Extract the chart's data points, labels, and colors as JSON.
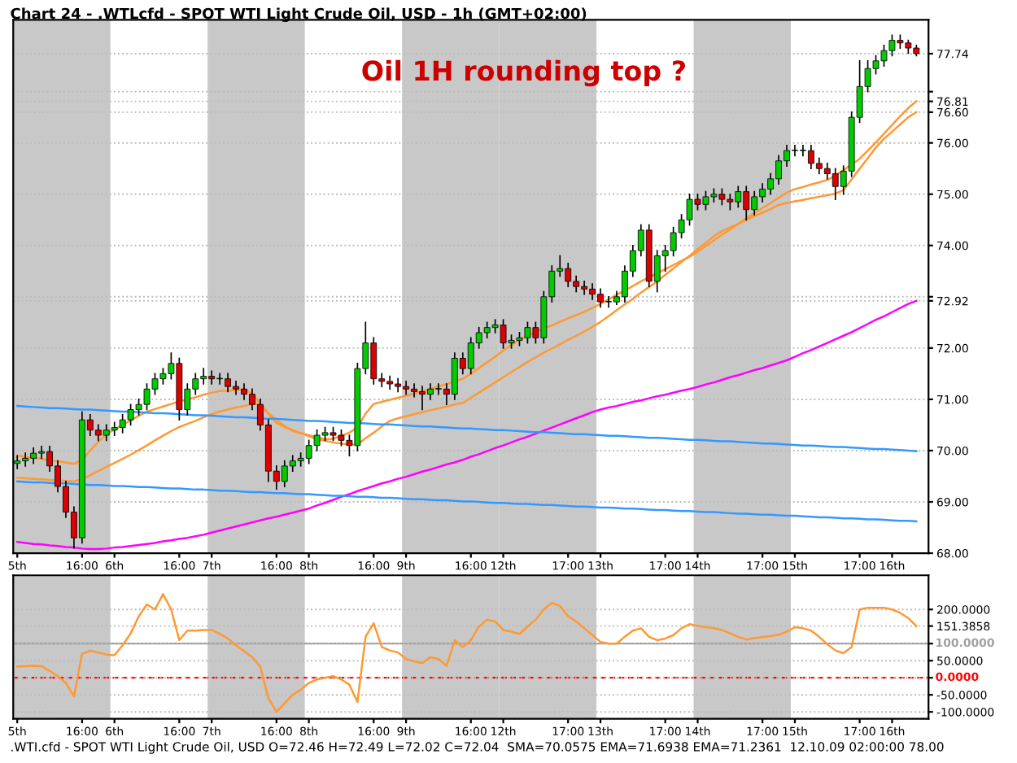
{
  "chart_data": [
    {
      "type": "candlestick",
      "title": "Chart 24 - .WTLcfd - SPOT WTI Light Crude Oil, USD - 1h (GMT+02:00)",
      "categories": [
        "5th",
        null,
        null,
        null,
        null,
        null,
        null,
        null,
        "16:00",
        null,
        null,
        null,
        "6th",
        null,
        null,
        null,
        null,
        null,
        null,
        null,
        "16:00",
        null,
        null,
        null,
        "7th",
        null,
        null,
        null,
        null,
        null,
        null,
        null,
        "16:00",
        null,
        null,
        null,
        "8th",
        null,
        null,
        null,
        null,
        null,
        null,
        null,
        "16:00",
        null,
        null,
        null,
        "9th",
        null,
        null,
        null,
        null,
        null,
        null,
        null,
        "16:00",
        null,
        null,
        null,
        "12th",
        null,
        null,
        null,
        null,
        null,
        null,
        null,
        "17:00",
        null,
        null,
        null,
        "13th",
        null,
        null,
        null,
        null,
        null,
        null,
        null,
        "17:00",
        null,
        null,
        null,
        "14th",
        null,
        null,
        null,
        null,
        null,
        null,
        null,
        "17:00",
        null,
        null,
        null,
        "15th",
        null,
        null,
        null,
        null,
        null,
        null,
        null,
        "17:00",
        null,
        null,
        null,
        "16th",
        null,
        null,
        null
      ],
      "ohlc": [
        [
          69.75,
          69.9,
          69.65,
          69.8
        ],
        [
          69.8,
          69.95,
          69.7,
          69.85
        ],
        [
          69.85,
          70.05,
          69.75,
          69.95
        ],
        [
          69.95,
          70.08,
          69.85,
          69.98
        ],
        [
          69.98,
          70.08,
          69.6,
          69.7
        ],
        [
          69.7,
          69.8,
          69.2,
          69.3
        ],
        [
          69.3,
          69.4,
          68.7,
          68.8
        ],
        [
          68.8,
          68.9,
          68.1,
          68.3
        ],
        [
          68.3,
          70.75,
          68.2,
          70.6
        ],
        [
          70.6,
          70.7,
          70.3,
          70.4
        ],
        [
          70.4,
          70.5,
          70.2,
          70.3
        ],
        [
          70.3,
          70.5,
          70.2,
          70.4
        ],
        [
          70.4,
          70.55,
          70.3,
          70.45
        ],
        [
          70.45,
          70.7,
          70.35,
          70.6
        ],
        [
          70.6,
          70.9,
          70.5,
          70.8
        ],
        [
          70.8,
          71.0,
          70.7,
          70.9
        ],
        [
          70.9,
          71.3,
          70.8,
          71.2
        ],
        [
          71.2,
          71.5,
          71.1,
          71.4
        ],
        [
          71.4,
          71.6,
          71.3,
          71.5
        ],
        [
          71.5,
          71.9,
          71.4,
          71.7
        ],
        [
          71.7,
          71.8,
          70.6,
          70.8
        ],
        [
          70.8,
          71.3,
          70.7,
          71.2
        ],
        [
          71.2,
          71.5,
          71.1,
          71.4
        ],
        [
          71.4,
          71.6,
          71.3,
          71.45
        ],
        [
          71.45,
          71.55,
          71.3,
          71.4
        ],
        [
          71.4,
          71.5,
          71.3,
          71.4
        ],
        [
          71.4,
          71.5,
          71.15,
          71.25
        ],
        [
          71.25,
          71.35,
          71.1,
          71.2
        ],
        [
          71.2,
          71.3,
          71.0,
          71.1
        ],
        [
          71.1,
          71.2,
          70.8,
          70.9
        ],
        [
          70.9,
          71.0,
          70.4,
          70.5
        ],
        [
          70.5,
          70.6,
          69.4,
          69.6
        ],
        [
          69.6,
          69.7,
          69.25,
          69.4
        ],
        [
          69.4,
          69.8,
          69.3,
          69.7
        ],
        [
          69.7,
          69.9,
          69.6,
          69.8
        ],
        [
          69.8,
          69.95,
          69.7,
          69.85
        ],
        [
          69.85,
          70.2,
          69.75,
          70.1
        ],
        [
          70.1,
          70.4,
          70.0,
          70.3
        ],
        [
          70.3,
          70.45,
          70.2,
          70.35
        ],
        [
          70.35,
          70.45,
          70.2,
          70.3
        ],
        [
          70.3,
          70.4,
          70.1,
          70.2
        ],
        [
          70.2,
          70.3,
          69.9,
          70.1
        ],
        [
          70.1,
          71.7,
          70.0,
          71.6
        ],
        [
          71.6,
          72.5,
          71.5,
          72.1
        ],
        [
          72.1,
          72.2,
          71.3,
          71.4
        ],
        [
          71.4,
          71.5,
          71.25,
          71.35
        ],
        [
          71.35,
          71.45,
          71.2,
          71.3
        ],
        [
          71.3,
          71.4,
          71.15,
          71.25
        ],
        [
          71.25,
          71.35,
          71.1,
          71.2
        ],
        [
          71.2,
          71.3,
          71.05,
          71.15
        ],
        [
          71.15,
          71.25,
          70.8,
          71.1
        ],
        [
          71.1,
          71.3,
          71.0,
          71.2
        ],
        [
          71.2,
          71.3,
          71.1,
          71.2
        ],
        [
          71.2,
          71.3,
          70.9,
          71.1
        ],
        [
          71.1,
          71.9,
          71.0,
          71.8
        ],
        [
          71.8,
          71.9,
          71.5,
          71.6
        ],
        [
          71.6,
          72.2,
          71.5,
          72.1
        ],
        [
          72.1,
          72.4,
          72.0,
          72.3
        ],
        [
          72.3,
          72.5,
          72.2,
          72.4
        ],
        [
          72.4,
          72.55,
          72.3,
          72.45
        ],
        [
          72.45,
          72.55,
          72.0,
          72.1
        ],
        [
          72.1,
          72.25,
          72.0,
          72.15
        ],
        [
          72.15,
          72.3,
          72.05,
          72.2
        ],
        [
          72.2,
          72.5,
          72.1,
          72.4
        ],
        [
          72.4,
          72.5,
          72.1,
          72.2
        ],
        [
          72.2,
          73.1,
          72.1,
          73.0
        ],
        [
          73.0,
          73.6,
          72.9,
          73.5
        ],
        [
          73.5,
          73.8,
          73.4,
          73.55
        ],
        [
          73.55,
          73.65,
          73.2,
          73.3
        ],
        [
          73.3,
          73.4,
          73.1,
          73.2
        ],
        [
          73.2,
          73.3,
          73.05,
          73.15
        ],
        [
          73.15,
          73.25,
          72.95,
          73.05
        ],
        [
          73.05,
          73.15,
          72.8,
          72.9
        ],
        [
          72.9,
          73.0,
          72.8,
          72.9
        ],
        [
          72.9,
          73.1,
          72.85,
          73.0
        ],
        [
          73.0,
          73.6,
          72.9,
          73.5
        ],
        [
          73.5,
          74.0,
          73.4,
          73.9
        ],
        [
          73.9,
          74.4,
          73.8,
          74.3
        ],
        [
          74.3,
          74.4,
          73.2,
          73.3
        ],
        [
          73.3,
          73.9,
          73.1,
          73.8
        ],
        [
          73.8,
          74.0,
          73.5,
          73.9
        ],
        [
          73.9,
          74.35,
          73.8,
          74.25
        ],
        [
          74.25,
          74.6,
          74.15,
          74.5
        ],
        [
          74.5,
          75.0,
          74.4,
          74.9
        ],
        [
          74.9,
          75.0,
          74.7,
          74.8
        ],
        [
          74.8,
          75.05,
          74.7,
          74.95
        ],
        [
          74.95,
          75.1,
          74.85,
          75.0
        ],
        [
          75.0,
          75.1,
          74.8,
          74.9
        ],
        [
          74.9,
          75.0,
          74.7,
          74.85
        ],
        [
          74.85,
          75.15,
          74.75,
          75.05
        ],
        [
          75.05,
          75.15,
          74.5,
          74.7
        ],
        [
          74.7,
          75.05,
          74.6,
          74.95
        ],
        [
          74.95,
          75.2,
          74.85,
          75.1
        ],
        [
          75.1,
          75.4,
          75.0,
          75.3
        ],
        [
          75.3,
          75.75,
          75.2,
          75.65
        ],
        [
          75.65,
          75.95,
          75.55,
          75.85
        ],
        [
          75.85,
          75.95,
          75.75,
          75.85
        ],
        [
          75.85,
          75.95,
          75.75,
          75.85
        ],
        [
          75.85,
          75.95,
          75.5,
          75.6
        ],
        [
          75.6,
          75.7,
          75.4,
          75.5
        ],
        [
          75.5,
          75.6,
          75.3,
          75.4
        ],
        [
          75.4,
          75.5,
          74.9,
          75.15
        ],
        [
          75.15,
          75.55,
          75.0,
          75.45
        ],
        [
          75.45,
          76.6,
          75.35,
          76.5
        ],
        [
          76.5,
          77.6,
          76.4,
          77.1
        ],
        [
          77.1,
          77.6,
          77.0,
          77.45
        ],
        [
          77.45,
          77.7,
          77.35,
          77.6
        ],
        [
          77.6,
          77.9,
          77.5,
          77.8
        ],
        [
          77.8,
          78.1,
          77.7,
          78.0
        ],
        [
          78.0,
          78.1,
          77.85,
          77.95
        ],
        [
          77.95,
          78.0,
          77.75,
          77.85
        ],
        [
          77.85,
          77.9,
          77.7,
          77.74
        ]
      ],
      "series": [
        {
          "type": "line",
          "color": "#ff00ff",
          "values": [
            68.22,
            68.2,
            68.18,
            68.17,
            68.15,
            68.14,
            68.12,
            68.11,
            68.09,
            68.08,
            68.08,
            68.09,
            68.11,
            68.12,
            68.14,
            68.16,
            68.18,
            68.2,
            68.23,
            68.25,
            68.28,
            68.3,
            68.33,
            68.36,
            68.4,
            68.44,
            68.48,
            68.52,
            68.56,
            68.6,
            68.64,
            68.68,
            68.71,
            68.75,
            68.79,
            68.83,
            68.87,
            68.93,
            68.98,
            69.04,
            69.1,
            69.15,
            69.21,
            69.26,
            69.31,
            69.36,
            69.4,
            69.45,
            69.49,
            69.54,
            69.59,
            69.63,
            69.68,
            69.73,
            69.77,
            69.82,
            69.88,
            69.93,
            69.99,
            70.05,
            70.1,
            70.16,
            70.22,
            70.27,
            70.33,
            70.39,
            70.45,
            70.51,
            70.57,
            70.63,
            70.69,
            70.75,
            70.8,
            70.84,
            70.87,
            70.91,
            70.95,
            70.98,
            71.02,
            71.06,
            71.09,
            71.13,
            71.17,
            71.2,
            71.24,
            71.29,
            71.33,
            71.38,
            71.43,
            71.47,
            71.52,
            71.57,
            71.61,
            71.66,
            71.71,
            71.76,
            71.83,
            71.9,
            71.96,
            72.03,
            72.1,
            72.17,
            72.24,
            72.31,
            72.39,
            72.47,
            72.55,
            72.62,
            72.7,
            72.78,
            72.86,
            72.92
          ]
        },
        {
          "type": "line",
          "color": "#ff9933",
          "values": [
            69.9,
            69.88,
            69.86,
            69.84,
            69.81,
            69.79,
            69.77,
            69.74,
            69.82,
            70.0,
            70.17,
            70.32,
            70.41,
            70.5,
            70.59,
            70.68,
            70.76,
            70.81,
            70.86,
            70.91,
            70.96,
            71.0,
            71.04,
            71.09,
            71.13,
            71.16,
            71.17,
            71.18,
            71.2,
            71.11,
            70.92,
            70.73,
            70.6,
            70.48,
            70.38,
            70.34,
            70.3,
            70.26,
            70.22,
            70.23,
            70.29,
            70.35,
            70.45,
            70.72,
            70.91,
            70.95,
            70.99,
            71.03,
            71.07,
            71.11,
            71.16,
            71.2,
            71.25,
            71.3,
            71.35,
            71.4,
            71.5,
            71.61,
            71.72,
            71.83,
            71.95,
            72.06,
            72.16,
            72.24,
            72.31,
            72.38,
            72.44,
            72.51,
            72.58,
            72.64,
            72.71,
            72.78,
            72.86,
            72.95,
            73.04,
            73.12,
            73.21,
            73.3,
            73.38,
            73.46,
            73.54,
            73.62,
            73.7,
            73.78,
            73.88,
            73.99,
            74.1,
            74.21,
            74.31,
            74.42,
            74.53,
            74.63,
            74.73,
            74.83,
            74.93,
            75.03,
            75.1,
            75.14,
            75.19,
            75.23,
            75.28,
            75.36,
            75.47,
            75.58,
            75.69,
            75.85,
            76.01,
            76.18,
            76.35,
            76.52,
            76.68,
            76.81
          ]
        },
        {
          "type": "line",
          "color": "#ff9933",
          "values": [
            69.47,
            69.46,
            69.45,
            69.44,
            69.43,
            69.42,
            69.41,
            69.4,
            69.44,
            69.52,
            69.6,
            69.68,
            69.76,
            69.84,
            69.92,
            70.01,
            70.1,
            70.2,
            70.29,
            70.38,
            70.46,
            70.52,
            70.58,
            70.65,
            70.71,
            70.76,
            70.8,
            70.84,
            70.87,
            70.91,
            70.9,
            70.72,
            70.54,
            70.46,
            70.4,
            70.34,
            70.28,
            70.22,
            70.19,
            70.16,
            70.14,
            70.12,
            70.12,
            70.24,
            70.35,
            70.47,
            70.58,
            70.63,
            70.67,
            70.71,
            70.75,
            70.79,
            70.82,
            70.86,
            70.9,
            70.93,
            71.03,
            71.13,
            71.23,
            71.33,
            71.43,
            71.53,
            71.63,
            71.73,
            71.82,
            71.91,
            71.99,
            72.07,
            72.16,
            72.24,
            72.32,
            72.41,
            72.51,
            72.62,
            72.74,
            72.85,
            72.96,
            73.08,
            73.19,
            73.3,
            73.43,
            73.55,
            73.68,
            73.8,
            73.93,
            74.05,
            74.18,
            74.28,
            74.35,
            74.42,
            74.5,
            74.57,
            74.64,
            74.71,
            74.79,
            74.83,
            74.86,
            74.89,
            74.92,
            74.95,
            74.98,
            75.01,
            75.08,
            75.29,
            75.5,
            75.7,
            75.91,
            76.08,
            76.22,
            76.36,
            76.5,
            76.6
          ]
        },
        {
          "type": "line",
          "color": "#3399ff",
          "values": [
            70.87,
            70.86,
            70.85,
            70.84,
            70.83,
            70.83,
            70.82,
            70.81,
            70.8,
            70.8,
            70.79,
            70.78,
            70.77,
            70.76,
            70.76,
            70.75,
            70.74,
            70.73,
            70.73,
            70.72,
            70.71,
            70.7,
            70.69,
            70.69,
            70.68,
            70.67,
            70.66,
            70.65,
            70.65,
            70.64,
            70.63,
            70.62,
            70.62,
            70.61,
            70.6,
            70.59,
            70.58,
            70.58,
            70.57,
            70.56,
            70.55,
            70.54,
            70.54,
            70.53,
            70.52,
            70.51,
            70.51,
            70.5,
            70.49,
            70.48,
            70.47,
            70.47,
            70.46,
            70.45,
            70.44,
            70.43,
            70.43,
            70.42,
            70.41,
            70.4,
            70.4,
            70.39,
            70.38,
            70.37,
            70.36,
            70.36,
            70.35,
            70.34,
            70.33,
            70.32,
            70.32,
            70.31,
            70.3,
            70.29,
            70.29,
            70.28,
            70.27,
            70.26,
            70.25,
            70.25,
            70.24,
            70.23,
            70.22,
            70.21,
            70.21,
            70.2,
            70.19,
            70.18,
            70.18,
            70.17,
            70.16,
            70.15,
            70.14,
            70.14,
            70.13,
            70.12,
            70.11,
            70.1,
            70.1,
            70.09,
            70.08,
            70.07,
            70.07,
            70.06,
            70.05,
            70.04,
            70.03,
            70.03,
            70.02,
            70.01,
            70.0,
            69.99
          ]
        },
        {
          "type": "line",
          "color": "#3399ff",
          "values": [
            69.4,
            69.39,
            69.38,
            69.38,
            69.37,
            69.36,
            69.36,
            69.35,
            69.34,
            69.33,
            69.33,
            69.32,
            69.31,
            69.31,
            69.3,
            69.29,
            69.29,
            69.28,
            69.27,
            69.26,
            69.26,
            69.25,
            69.24,
            69.24,
            69.23,
            69.22,
            69.22,
            69.21,
            69.2,
            69.19,
            69.19,
            69.18,
            69.17,
            69.17,
            69.16,
            69.15,
            69.15,
            69.14,
            69.13,
            69.12,
            69.12,
            69.11,
            69.1,
            69.1,
            69.09,
            69.08,
            69.08,
            69.07,
            69.06,
            69.05,
            69.05,
            69.04,
            69.03,
            69.03,
            69.02,
            69.01,
            69.01,
            69.0,
            68.99,
            68.98,
            68.98,
            68.97,
            68.96,
            68.96,
            68.95,
            68.94,
            68.94,
            68.93,
            68.92,
            68.91,
            68.91,
            68.9,
            68.89,
            68.89,
            68.88,
            68.87,
            68.87,
            68.86,
            68.85,
            68.84,
            68.84,
            68.83,
            68.82,
            68.82,
            68.81,
            68.8,
            68.8,
            68.79,
            68.78,
            68.77,
            68.77,
            68.76,
            68.75,
            68.75,
            68.74,
            68.73,
            68.73,
            68.72,
            68.71,
            68.7,
            68.7,
            68.69,
            68.68,
            68.68,
            68.67,
            68.66,
            68.66,
            68.65,
            68.64,
            68.63,
            68.63,
            68.62
          ]
        }
      ],
      "bands": [
        {
          "axis": "x",
          "from": "5th",
          "to": "6th",
          "color": "#c8c8c8"
        },
        {
          "axis": "x",
          "from": "7th",
          "to": "8th",
          "color": "#c8c8c8"
        },
        {
          "axis": "x",
          "from": "9th",
          "to": "12th",
          "color": "#c8c8c8"
        },
        {
          "axis": "x",
          "from": "12th",
          "to": "13th",
          "color": "#c8c8c8"
        },
        {
          "axis": "x",
          "from": "14th",
          "to": "15th",
          "color": "#c8c8c8"
        }
      ],
      "ylim": [
        68,
        78.4
      ],
      "yticks": [
        {
          "value": 68,
          "label": "68.00"
        },
        {
          "value": 69,
          "label": "69.00"
        },
        {
          "value": 70,
          "label": "70.00"
        },
        {
          "value": 71,
          "label": "71.00"
        },
        {
          "value": 72,
          "label": "72.00"
        },
        {
          "value": 72.92,
          "label": "72.92"
        },
        {
          "value": 73,
          "label": null
        },
        {
          "value": 74,
          "label": "74.00"
        },
        {
          "value": 75,
          "label": "75.00"
        },
        {
          "value": 76,
          "label": "76.00"
        },
        {
          "value": 76.6,
          "label": "76.60"
        },
        {
          "value": 76.81,
          "label": "76.81"
        },
        {
          "value": 77,
          "label": null
        },
        {
          "value": 77.74,
          "label": "77.74"
        }
      ],
      "grid": "y",
      "annotations": [
        "Oil 1H rounding top ?"
      ]
    },
    {
      "type": "line",
      "categories": [
        "5th",
        null,
        null,
        null,
        null,
        null,
        null,
        null,
        "16:00",
        null,
        null,
        null,
        "6th",
        null,
        null,
        null,
        null,
        null,
        null,
        null,
        "16:00",
        null,
        null,
        null,
        "7th",
        null,
        null,
        null,
        null,
        null,
        null,
        null,
        "16:00",
        null,
        null,
        null,
        "8th",
        null,
        null,
        null,
        null,
        null,
        null,
        null,
        "16:00",
        null,
        null,
        null,
        "9th",
        null,
        null,
        null,
        null,
        null,
        null,
        null,
        "16:00",
        null,
        null,
        null,
        "12th",
        null,
        null,
        null,
        null,
        null,
        null,
        null,
        "17:00",
        null,
        null,
        null,
        "13th",
        null,
        null,
        null,
        null,
        null,
        null,
        null,
        "17:00",
        null,
        null,
        null,
        "14th",
        null,
        null,
        null,
        null,
        null,
        null,
        null,
        "17:00",
        null,
        null,
        null,
        "15th",
        null,
        null,
        null,
        null,
        null,
        null,
        null,
        "17:00",
        null,
        null,
        null,
        "16th",
        null,
        null,
        null
      ],
      "series": [
        {
          "color": "#ff9933",
          "values": [
            33,
            34,
            35,
            34,
            20,
            5,
            -15,
            -55,
            70,
            79,
            74,
            68,
            66,
            95,
            130,
            180,
            215,
            200,
            245,
            200,
            110,
            138,
            138,
            140,
            140,
            128,
            115,
            95,
            78,
            60,
            33,
            -60,
            -100,
            -75,
            -50,
            -35,
            -15,
            -5,
            0,
            5,
            -5,
            -20,
            -71,
            120,
            160,
            90,
            80,
            74,
            55,
            48,
            43,
            60,
            55,
            35,
            110,
            90,
            110,
            150,
            170,
            165,
            140,
            135,
            128,
            150,
            170,
            200,
            220,
            210,
            180,
            165,
            145,
            125,
            105,
            100,
            100,
            120,
            138,
            145,
            120,
            110,
            115,
            125,
            145,
            157,
            152,
            148,
            145,
            140,
            130,
            120,
            112,
            116,
            119,
            122,
            126,
            135,
            148,
            145,
            138,
            120,
            98,
            80,
            72,
            90,
            200,
            205,
            205,
            205,
            200,
            190,
            175,
            151
          ]
        }
      ],
      "bands": [
        {
          "axis": "x",
          "from": "5th",
          "to": "6th",
          "color": "#c8c8c8"
        },
        {
          "axis": "x",
          "from": "7th",
          "to": "8th",
          "color": "#c8c8c8"
        },
        {
          "axis": "x",
          "from": "9th",
          "to": "12th",
          "color": "#c8c8c8"
        },
        {
          "axis": "x",
          "from": "12th",
          "to": "13th",
          "color": "#c8c8c8"
        },
        {
          "axis": "x",
          "from": "14th",
          "to": "15th",
          "color": "#c8c8c8"
        }
      ],
      "ref_lines": [
        {
          "axis": "y",
          "value": 0,
          "label": "0.0000",
          "color": "#ff0000",
          "line_style": "dashed"
        },
        {
          "axis": "y",
          "value": 100,
          "label": "100.0000",
          "color": "#a0a0a0",
          "line_style": "solid"
        }
      ],
      "ylim": [
        -120,
        300
      ],
      "yticks": [
        {
          "value": -100,
          "label": "-100.0000"
        },
        {
          "value": -50,
          "label": "-50.0000"
        },
        {
          "value": 0,
          "label": null
        },
        {
          "value": 50,
          "label": "50.0000"
        },
        {
          "value": 100,
          "label": null
        },
        {
          "value": 151.3858,
          "label": "151.3858"
        },
        {
          "value": 200,
          "label": "200.0000"
        }
      ],
      "grid": "y",
      "annotations": [
        ".WTI.cfd - SPOT WTI Light Crude Oil, USD O=72.46 H=72.49 L=72.02 C=72.04  SMA=70.0575 EMA=71.6938 EMA=71.2361  12.10.09 02:00:00 78.00"
      ]
    }
  ]
}
